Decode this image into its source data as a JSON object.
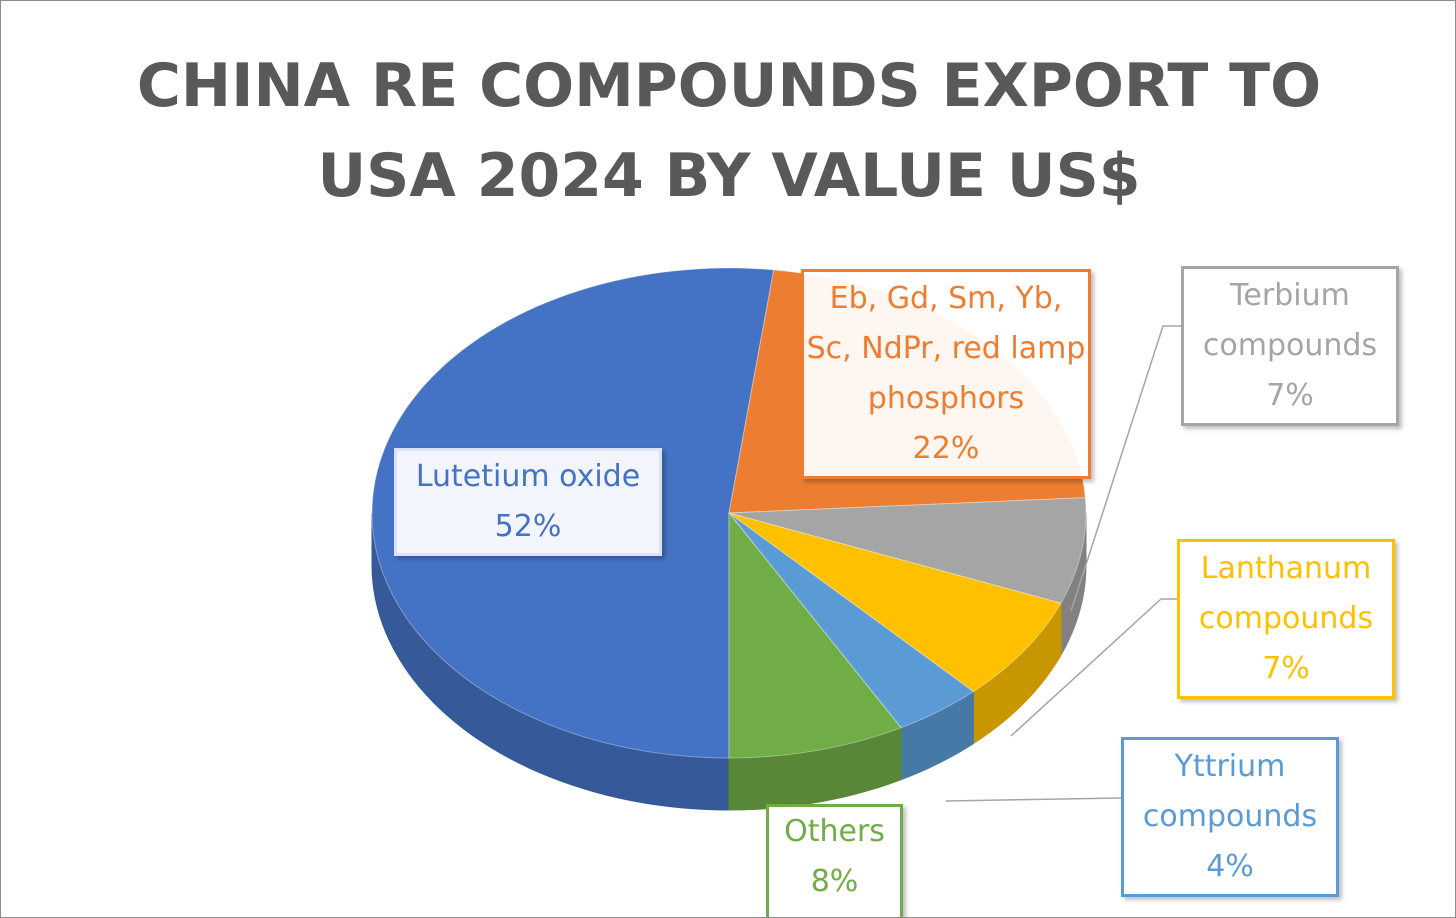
{
  "chart_data": {
    "type": "pie",
    "title": "CHINA RE COMPOUNDS EXPORT TO USA 2024 BY VALUE US$",
    "categories": [
      "Lutetium oxide",
      "Eb, Gd, Sm, Yb, Sc, NdPr, red lamp phosphors",
      "Terbium compounds",
      "Lanthanum compounds",
      "Yttrium compounds",
      "Others"
    ],
    "values": [
      52,
      22,
      7,
      7,
      4,
      8
    ],
    "value_labels": [
      "52%",
      "22%",
      "7%",
      "7%",
      "4%",
      "8%"
    ],
    "colors": [
      "#4472c4",
      "#ed7d31",
      "#a5a5a5",
      "#ffc000",
      "#5b9bd5",
      "#70ad47"
    ]
  }
}
